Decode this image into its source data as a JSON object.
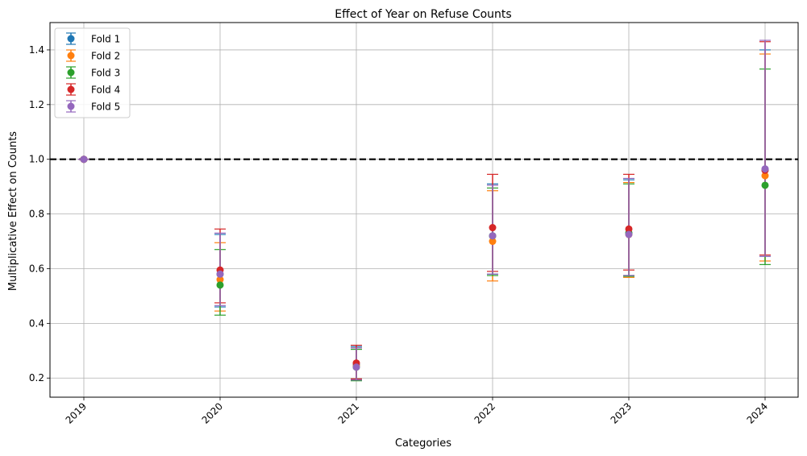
{
  "chart_data": {
    "type": "scatter",
    "title": "Effect of Year on Refuse Counts",
    "xlabel": "Categories",
    "ylabel": "Multiplicative Effect on Counts",
    "categories": [
      "2019",
      "2020",
      "2021",
      "2022",
      "2023",
      "2024"
    ],
    "yticks": [
      "0.2",
      "0.4",
      "0.6",
      "0.8",
      "1.0",
      "1.2",
      "1.4"
    ],
    "ylim": [
      0.13,
      1.5
    ],
    "reference_line": 1.0,
    "grid": true,
    "legend_position": "top-left",
    "series": [
      {
        "name": "Fold 1",
        "color": "#1f77b4",
        "values": [
          1.0,
          0.58,
          0.25,
          0.72,
          0.73,
          0.96
        ],
        "lower": [
          1.0,
          0.46,
          0.195,
          0.58,
          0.575,
          0.645
        ],
        "upper": [
          1.0,
          0.725,
          0.315,
          0.91,
          0.925,
          1.4
        ]
      },
      {
        "name": "Fold 2",
        "color": "#ff7f0e",
        "values": [
          1.0,
          0.56,
          0.245,
          0.7,
          0.725,
          0.94
        ],
        "lower": [
          1.0,
          0.445,
          0.192,
          0.555,
          0.568,
          0.628
        ],
        "upper": [
          1.0,
          0.695,
          0.31,
          0.885,
          0.915,
          1.385
        ]
      },
      {
        "name": "Fold 3",
        "color": "#2ca02c",
        "values": [
          1.0,
          0.54,
          0.24,
          0.72,
          0.73,
          0.905
        ],
        "lower": [
          1.0,
          0.43,
          0.19,
          0.575,
          0.572,
          0.615
        ],
        "upper": [
          1.0,
          0.67,
          0.305,
          0.895,
          0.91,
          1.33
        ]
      },
      {
        "name": "Fold 4",
        "color": "#d62728",
        "values": [
          1.0,
          0.595,
          0.255,
          0.75,
          0.745,
          0.96
        ],
        "lower": [
          1.0,
          0.475,
          0.197,
          0.59,
          0.595,
          0.65
        ],
        "upper": [
          1.0,
          0.745,
          0.32,
          0.945,
          0.945,
          1.43
        ]
      },
      {
        "name": "Fold 5",
        "color": "#9467bd",
        "values": [
          1.0,
          0.58,
          0.24,
          0.72,
          0.725,
          0.965
        ],
        "lower": [
          1.0,
          0.465,
          0.193,
          0.58,
          0.575,
          0.645
        ],
        "upper": [
          1.0,
          0.73,
          0.31,
          0.905,
          0.93,
          1.435
        ]
      }
    ]
  }
}
